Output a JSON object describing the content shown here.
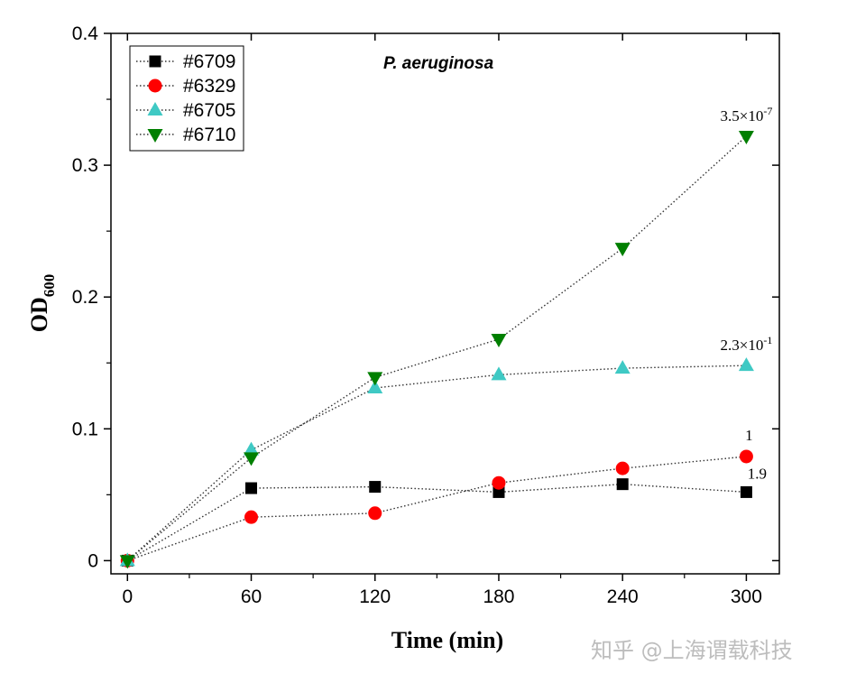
{
  "chart_data": {
    "type": "line",
    "title": "P. aeruginosa",
    "xlabel": "Time (min)",
    "ylabel_main": "OD",
    "ylabel_sub": "600",
    "xlim": [
      -8,
      316
    ],
    "ylim": [
      -0.01,
      0.4
    ],
    "xticks": [
      0,
      60,
      120,
      180,
      240,
      300
    ],
    "xtick_labels": [
      "0",
      "60",
      "120",
      "180",
      "240",
      "300"
    ],
    "xminor": [
      30,
      90,
      150,
      210,
      270
    ],
    "yticks": [
      0,
      0.1,
      0.2,
      0.3,
      0.4
    ],
    "ytick_labels": [
      "0",
      "0.1",
      "0.2",
      "0.3",
      "0.4"
    ],
    "yminor": [
      0.05,
      0.15,
      0.25,
      0.35
    ],
    "grid": false,
    "legend_position": "top-left",
    "x": [
      0,
      60,
      120,
      180,
      240,
      300
    ],
    "series": [
      {
        "name": "#6709",
        "marker": "square",
        "color": "#000000",
        "values": [
          0,
          0.055,
          0.056,
          0.052,
          0.058,
          0.052
        ]
      },
      {
        "name": "#6329",
        "marker": "circle",
        "color": "#ff0000",
        "values": [
          0,
          0.033,
          0.036,
          0.059,
          0.07,
          0.079
        ]
      },
      {
        "name": "#6705",
        "marker": "triangle-up",
        "color": "#3fc9c4",
        "values": [
          0,
          0.084,
          0.131,
          0.141,
          0.146,
          0.148
        ]
      },
      {
        "name": "#6710",
        "marker": "triangle-down",
        "color": "#007f00",
        "values": [
          0,
          0.078,
          0.139,
          0.168,
          0.237,
          0.322
        ]
      }
    ],
    "annotations": [
      {
        "base": "3.5×10",
        "exp": "-7",
        "x": 300,
        "y": 0.322
      },
      {
        "base": "2.3×10",
        "exp": "-1",
        "x": 300,
        "y": 0.148
      },
      {
        "base": "1",
        "exp": "",
        "x": 300,
        "y": 0.079
      },
      {
        "base": "1.9",
        "exp": "",
        "x": 300,
        "y": 0.052
      }
    ]
  },
  "watermark": "知乎 @上海谓载科技"
}
